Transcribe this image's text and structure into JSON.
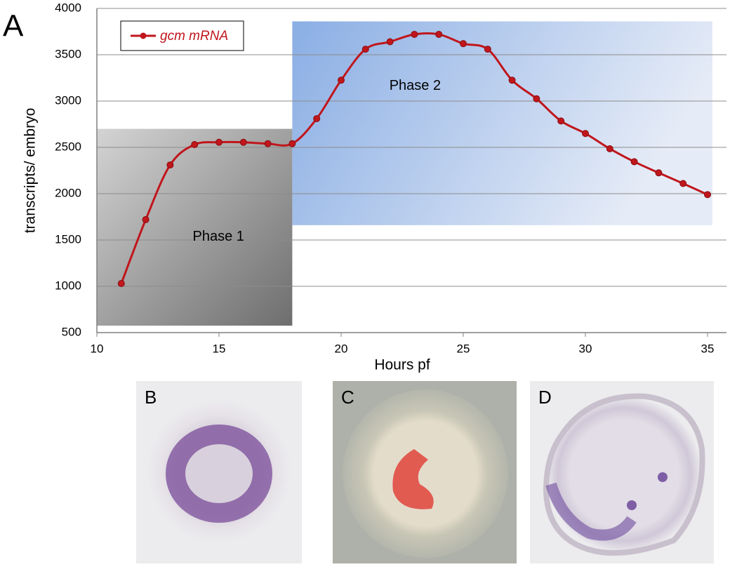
{
  "chart_data": {
    "type": "line",
    "panel_label": "A",
    "y_label": "transcripts/ embryo",
    "x_label": "Hours pf",
    "x": [
      11,
      12,
      13,
      14,
      15,
      16,
      17,
      18,
      19,
      20,
      21,
      22,
      23,
      24,
      25,
      26,
      27,
      28,
      29,
      30,
      31,
      32,
      33,
      34,
      35
    ],
    "series": [
      {
        "name": "gcm mRNA",
        "color": "#c0161c",
        "values": [
          1030,
          1720,
          2310,
          2530,
          2555,
          2555,
          2540,
          2540,
          2810,
          3225,
          3560,
          3640,
          3720,
          3720,
          3620,
          3560,
          3225,
          3025,
          2785,
          2650,
          2485,
          2345,
          2225,
          2110,
          1990
        ]
      }
    ],
    "xlim": [
      10,
      35
    ],
    "ylim": [
      500,
      4000
    ],
    "xticks": [
      10,
      15,
      20,
      25,
      30,
      35
    ],
    "yticks": [
      500,
      1000,
      1500,
      2000,
      2500,
      3000,
      3500,
      4000
    ],
    "grid": true,
    "legend": "upper left",
    "regions": [
      {
        "text": "Phase 1",
        "x": [
          10,
          18
        ],
        "y": [
          575,
          2700
        ]
      },
      {
        "text": "Phase 2",
        "x": [
          18,
          35.2
        ],
        "y": [
          1660,
          3860
        ]
      }
    ]
  },
  "panels": [
    {
      "label": "B"
    },
    {
      "label": "C"
    },
    {
      "label": "D"
    }
  ]
}
